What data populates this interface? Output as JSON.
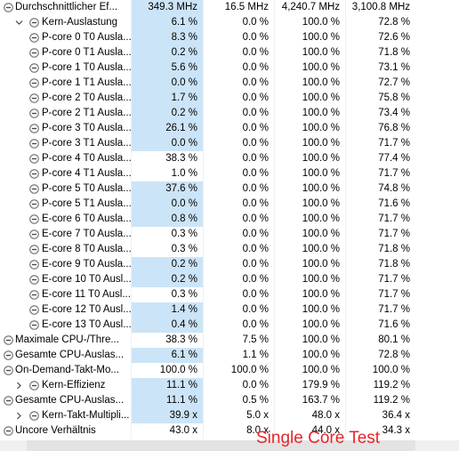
{
  "overlay_text": "Single Core Test",
  "table": {
    "rows": [
      {
        "label": "Durchschnittlicher Ef...",
        "level": 0,
        "highlight": true,
        "cells": [
          "349.3 MHz",
          "16.5 MHz",
          "4,240.7 MHz",
          "3,100.8 MHz"
        ]
      },
      {
        "label": "Kern-Auslastung",
        "level": 1,
        "toggle": "expanded",
        "highlight": true,
        "cells": [
          "6.1 %",
          "0.0 %",
          "100.0 %",
          "72.8 %"
        ]
      },
      {
        "label": "P-core 0 T0 Ausla...",
        "level": 2,
        "highlight": true,
        "cells": [
          "8.3 %",
          "0.0 %",
          "100.0 %",
          "72.6 %"
        ]
      },
      {
        "label": "P-core 0 T1 Ausla...",
        "level": 2,
        "highlight": true,
        "cells": [
          "0.2 %",
          "0.0 %",
          "100.0 %",
          "71.8 %"
        ]
      },
      {
        "label": "P-core 1 T0 Ausla...",
        "level": 2,
        "highlight": true,
        "cells": [
          "5.6 %",
          "0.0 %",
          "100.0 %",
          "73.1 %"
        ]
      },
      {
        "label": "P-core 1 T1 Ausla...",
        "level": 2,
        "highlight": true,
        "cells": [
          "0.0 %",
          "0.0 %",
          "100.0 %",
          "72.7 %"
        ]
      },
      {
        "label": "P-core 2 T0 Ausla...",
        "level": 2,
        "highlight": true,
        "cells": [
          "1.7 %",
          "0.0 %",
          "100.0 %",
          "75.8 %"
        ]
      },
      {
        "label": "P-core 2 T1 Ausla...",
        "level": 2,
        "highlight": true,
        "cells": [
          "0.2 %",
          "0.0 %",
          "100.0 %",
          "73.4 %"
        ]
      },
      {
        "label": "P-core 3 T0 Ausla...",
        "level": 2,
        "highlight": true,
        "cells": [
          "26.1 %",
          "0.0 %",
          "100.0 %",
          "76.8 %"
        ]
      },
      {
        "label": "P-core 3 T1 Ausla...",
        "level": 2,
        "highlight": true,
        "cells": [
          "0.0 %",
          "0.0 %",
          "100.0 %",
          "71.7 %"
        ]
      },
      {
        "label": "P-core 4 T0 Ausla...",
        "level": 2,
        "highlight": false,
        "cells": [
          "38.3 %",
          "0.0 %",
          "100.0 %",
          "77.4 %"
        ]
      },
      {
        "label": "P-core 4 T1 Ausla...",
        "level": 2,
        "highlight": false,
        "cells": [
          "1.0 %",
          "0.0 %",
          "100.0 %",
          "71.7 %"
        ]
      },
      {
        "label": "P-core 5 T0 Ausla...",
        "level": 2,
        "highlight": true,
        "cells": [
          "37.6 %",
          "0.0 %",
          "100.0 %",
          "74.8 %"
        ]
      },
      {
        "label": "P-core 5 T1 Ausla...",
        "level": 2,
        "highlight": true,
        "cells": [
          "0.0 %",
          "0.0 %",
          "100.0 %",
          "71.6 %"
        ]
      },
      {
        "label": "E-core 6 T0 Ausla...",
        "level": 2,
        "highlight": true,
        "cells": [
          "0.8 %",
          "0.0 %",
          "100.0 %",
          "71.7 %"
        ]
      },
      {
        "label": "E-core 7 T0 Ausla...",
        "level": 2,
        "highlight": false,
        "cells": [
          "0.3 %",
          "0.0 %",
          "100.0 %",
          "71.7 %"
        ]
      },
      {
        "label": "E-core 8 T0 Ausla...",
        "level": 2,
        "highlight": false,
        "cells": [
          "0.3 %",
          "0.0 %",
          "100.0 %",
          "71.8 %"
        ]
      },
      {
        "label": "E-core 9 T0 Ausla...",
        "level": 2,
        "highlight": true,
        "cells": [
          "0.2 %",
          "0.0 %",
          "100.0 %",
          "71.8 %"
        ]
      },
      {
        "label": "E-core 10 T0 Ausl...",
        "level": 2,
        "highlight": true,
        "cells": [
          "0.2 %",
          "0.0 %",
          "100.0 %",
          "71.7 %"
        ]
      },
      {
        "label": "E-core 11 T0 Ausl...",
        "level": 2,
        "highlight": false,
        "cells": [
          "0.3 %",
          "0.0 %",
          "100.0 %",
          "71.7 %"
        ]
      },
      {
        "label": "E-core 12 T0 Ausl...",
        "level": 2,
        "highlight": true,
        "cells": [
          "1.4 %",
          "0.0 %",
          "100.0 %",
          "71.7 %"
        ]
      },
      {
        "label": "E-core 13 T0 Ausl...",
        "level": 2,
        "highlight": true,
        "cells": [
          "0.4 %",
          "0.0 %",
          "100.0 %",
          "71.6 %"
        ]
      },
      {
        "label": "Maximale CPU-/Thre...",
        "level": 0,
        "highlight": false,
        "cells": [
          "38.3 %",
          "7.5 %",
          "100.0 %",
          "80.1 %"
        ]
      },
      {
        "label": "Gesamte CPU-Auslas...",
        "level": 0,
        "highlight": true,
        "cells": [
          "6.1 %",
          "1.1 %",
          "100.0 %",
          "72.8 %"
        ]
      },
      {
        "label": "On-Demand-Takt-Mo...",
        "level": 0,
        "highlight": false,
        "cells": [
          "100.0 %",
          "100.0 %",
          "100.0 %",
          "100.0 %"
        ]
      },
      {
        "label": "Kern-Effizienz",
        "level": 1,
        "toggle": "collapsed",
        "highlight": true,
        "cells": [
          "11.1 %",
          "0.0 %",
          "179.9 %",
          "119.2 %"
        ]
      },
      {
        "label": "Gesamte CPU-Auslas...",
        "level": 0,
        "highlight": true,
        "cells": [
          "11.1 %",
          "0.5 %",
          "163.7 %",
          "119.2 %"
        ]
      },
      {
        "label": "Kern-Takt-Multipli...",
        "level": 1,
        "toggle": "collapsed",
        "highlight": true,
        "cells": [
          "39.9 x",
          "5.0 x",
          "48.0 x",
          "36.4 x"
        ]
      },
      {
        "label": "Uncore Verhältnis",
        "level": 0,
        "highlight": false,
        "cells": [
          "43.0 x",
          "8.0 x",
          "44.0 x",
          "34.3 x"
        ]
      }
    ]
  }
}
